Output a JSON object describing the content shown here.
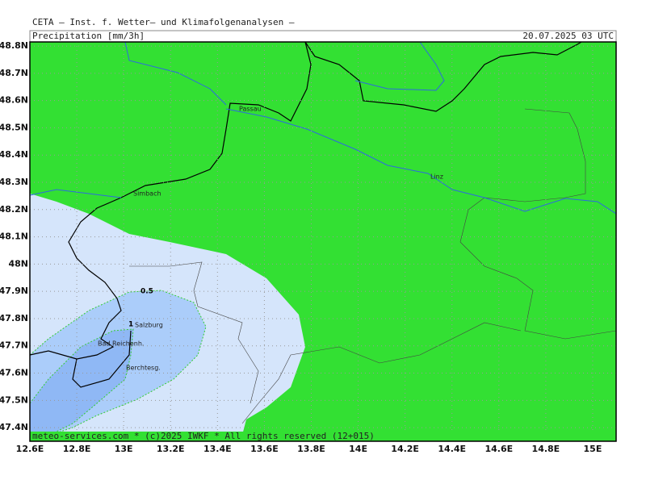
{
  "header": {
    "title": "CETA — Inst. f. Wetter— und Klimafolgenanalysen —",
    "field": "Precipitation [mm/3h]",
    "valid_time": "20.07.2025 03 UTC"
  },
  "map": {
    "xlim": [
      12.6,
      15.1
    ],
    "ylim": [
      47.35,
      48.815
    ],
    "xticks": [
      {
        "value": 12.6,
        "label": "12.6E"
      },
      {
        "value": 12.8,
        "label": "12.8E"
      },
      {
        "value": 13,
        "label": "13E"
      },
      {
        "value": 13.2,
        "label": "13.2E"
      },
      {
        "value": 13.4,
        "label": "13.4E"
      },
      {
        "value": 13.6,
        "label": "13.6E"
      },
      {
        "value": 13.8,
        "label": "13.8E"
      },
      {
        "value": 14,
        "label": "14E"
      },
      {
        "value": 14.2,
        "label": "14.2E"
      },
      {
        "value": 14.4,
        "label": "14.4E"
      },
      {
        "value": 14.6,
        "label": "14.6E"
      },
      {
        "value": 14.8,
        "label": "14.8E"
      },
      {
        "value": 15,
        "label": "15E"
      }
    ],
    "yticks": [
      {
        "value": 47.4,
        "label": "47.4N"
      },
      {
        "value": 47.5,
        "label": "47.5N"
      },
      {
        "value": 47.6,
        "label": "47.6N"
      },
      {
        "value": 47.7,
        "label": "47.7N"
      },
      {
        "value": 47.8,
        "label": "47.8N"
      },
      {
        "value": 47.9,
        "label": "47.9N"
      },
      {
        "value": 48,
        "label": "48N"
      },
      {
        "value": 48.1,
        "label": "48.1N"
      },
      {
        "value": 48.2,
        "label": "48.2N"
      },
      {
        "value": 48.3,
        "label": "48.3N"
      },
      {
        "value": 48.4,
        "label": "48.4N"
      },
      {
        "value": 48.5,
        "label": "48.5N"
      },
      {
        "value": 48.6,
        "label": "48.6N"
      },
      {
        "value": 48.7,
        "label": "48.7N"
      },
      {
        "value": 48.8,
        "label": "48.8N"
      }
    ],
    "places": [
      "Passau",
      "Simbach",
      "Linz",
      "Salzburg",
      "Bad Reichenh.",
      "Berchtesg."
    ],
    "contour_levels": [
      0.5,
      1
    ],
    "footer": "meteo-services.com * (c)2025 IWKF * All rights reserved (12+015)"
  }
}
